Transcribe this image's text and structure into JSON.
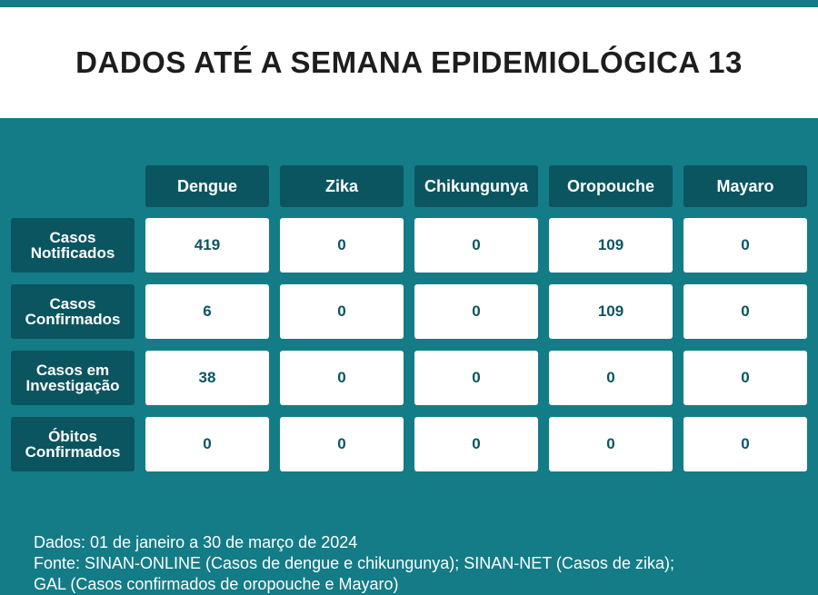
{
  "header": {
    "title": "DADOS ATÉ A SEMANA EPIDEMIOLÓGICA 13"
  },
  "table": {
    "columns": [
      "Dengue",
      "Zika",
      "Chikungunya",
      "Oropouche",
      "Mayaro"
    ],
    "rows": [
      {
        "label": "Casos Notificados",
        "values": [
          419,
          0,
          0,
          109,
          0
        ]
      },
      {
        "label": "Casos Confirmados",
        "values": [
          6,
          0,
          0,
          109,
          0
        ]
      },
      {
        "label": "Casos em Investigação",
        "values": [
          38,
          0,
          0,
          0,
          0
        ]
      },
      {
        "label": "Óbitos Confirmados",
        "values": [
          0,
          0,
          0,
          0,
          0
        ]
      }
    ]
  },
  "footer": {
    "lines": [
      "Dados: 01 de janeiro a 30 de março de 2024",
      "Fonte: SINAN-ONLINE (Casos de dengue e chikungunya); SINAN-NET (Casos de zika);",
      "GAL (Casos confirmados de oropouche e Mayaro)"
    ]
  }
}
